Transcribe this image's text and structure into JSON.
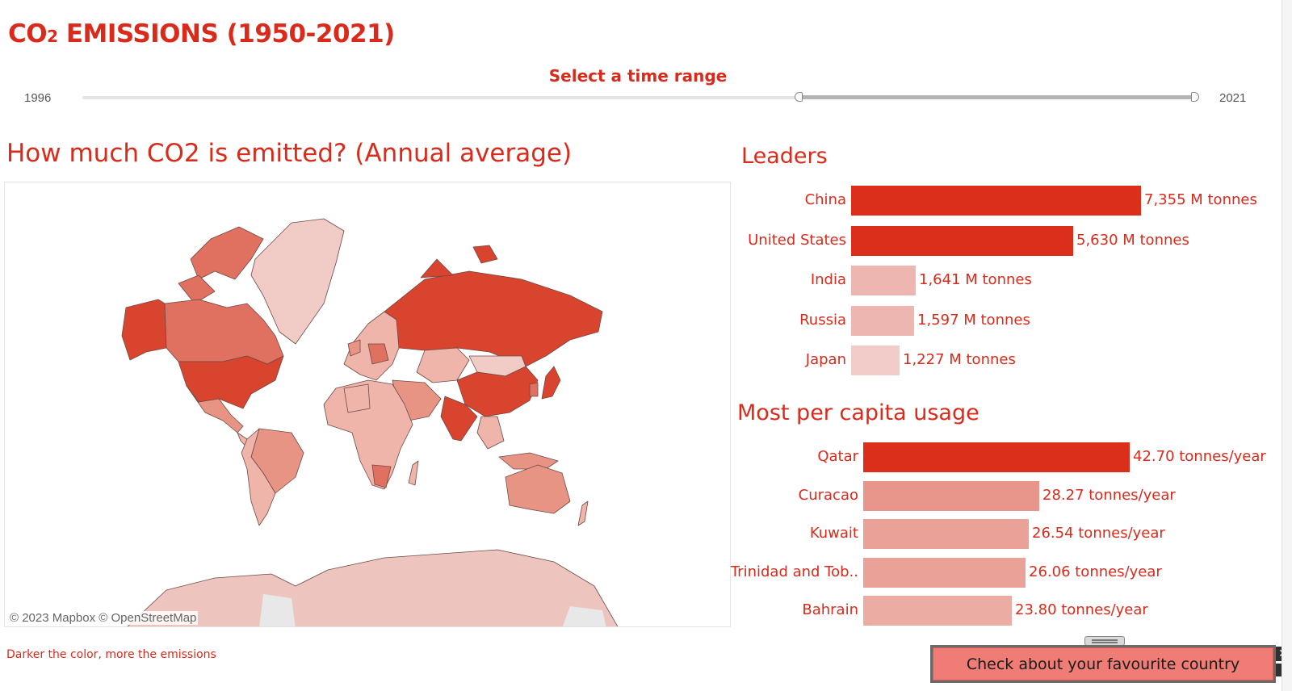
{
  "header": {
    "title_main": "CO",
    "title_sub": "2",
    "title_rest": " EMISSIONS (1950-2021)"
  },
  "time_range": {
    "label": "Select a time range",
    "min_label": "1996",
    "max_label": "2021",
    "selected_start_fraction": 0.63,
    "selected_end_fraction": 1.0
  },
  "map": {
    "title": "How much CO2  is emitted? (Annual average)",
    "attribution": "© 2023 Mapbox © OpenStreetMap",
    "legend_note": "Darker the color, more the emissions",
    "colors": {
      "darkest": "#d9442e",
      "dark": "#e0705f",
      "medium": "#e89484",
      "light": "#efb4aa",
      "lightest": "#f1cbc6",
      "antarctica": "#edc4be",
      "borders": "#6e4a46"
    }
  },
  "leaders": {
    "title": "Leaders",
    "items": [
      {
        "country": "China",
        "value_label": "7,355 M tonnes",
        "value": 7355,
        "color": "#dc2f1b"
      },
      {
        "country": "United States",
        "value_label": "5,630 M tonnes",
        "value": 5630,
        "color": "#dc2f1b"
      },
      {
        "country": "India",
        "value_label": "1,641 M tonnes",
        "value": 1641,
        "color": "#eeb6b0"
      },
      {
        "country": "Russia",
        "value_label": "1,597 M tonnes",
        "value": 1597,
        "color": "#eeb6b0"
      },
      {
        "country": "Japan",
        "value_label": "1,227 M tonnes",
        "value": 1227,
        "color": "#f1ccc8"
      }
    ]
  },
  "per_capita": {
    "title": "Most per capita usage",
    "items": [
      {
        "country": "Qatar",
        "value_label": "42.70 tonnes/year",
        "value": 42.7,
        "color": "#dc2f1b"
      },
      {
        "country": "Curacao",
        "value_label": "28.27 tonnes/year",
        "value": 28.27,
        "color": "#e8968b"
      },
      {
        "country": "Kuwait",
        "value_label": "26.54 tonnes/year",
        "value": 26.54,
        "color": "#e9a198"
      },
      {
        "country": "Trinidad and Tob..",
        "value_label": "26.06 tonnes/year",
        "value": 26.06,
        "color": "#e9a198"
      },
      {
        "country": "Bahrain",
        "value_label": "23.80 tonnes/year",
        "value": 23.8,
        "color": "#ebaca4"
      }
    ]
  },
  "cta": {
    "label": "Check about your favourite country",
    "close_glyph": "✕",
    "scroll_glyph": "▾"
  }
}
